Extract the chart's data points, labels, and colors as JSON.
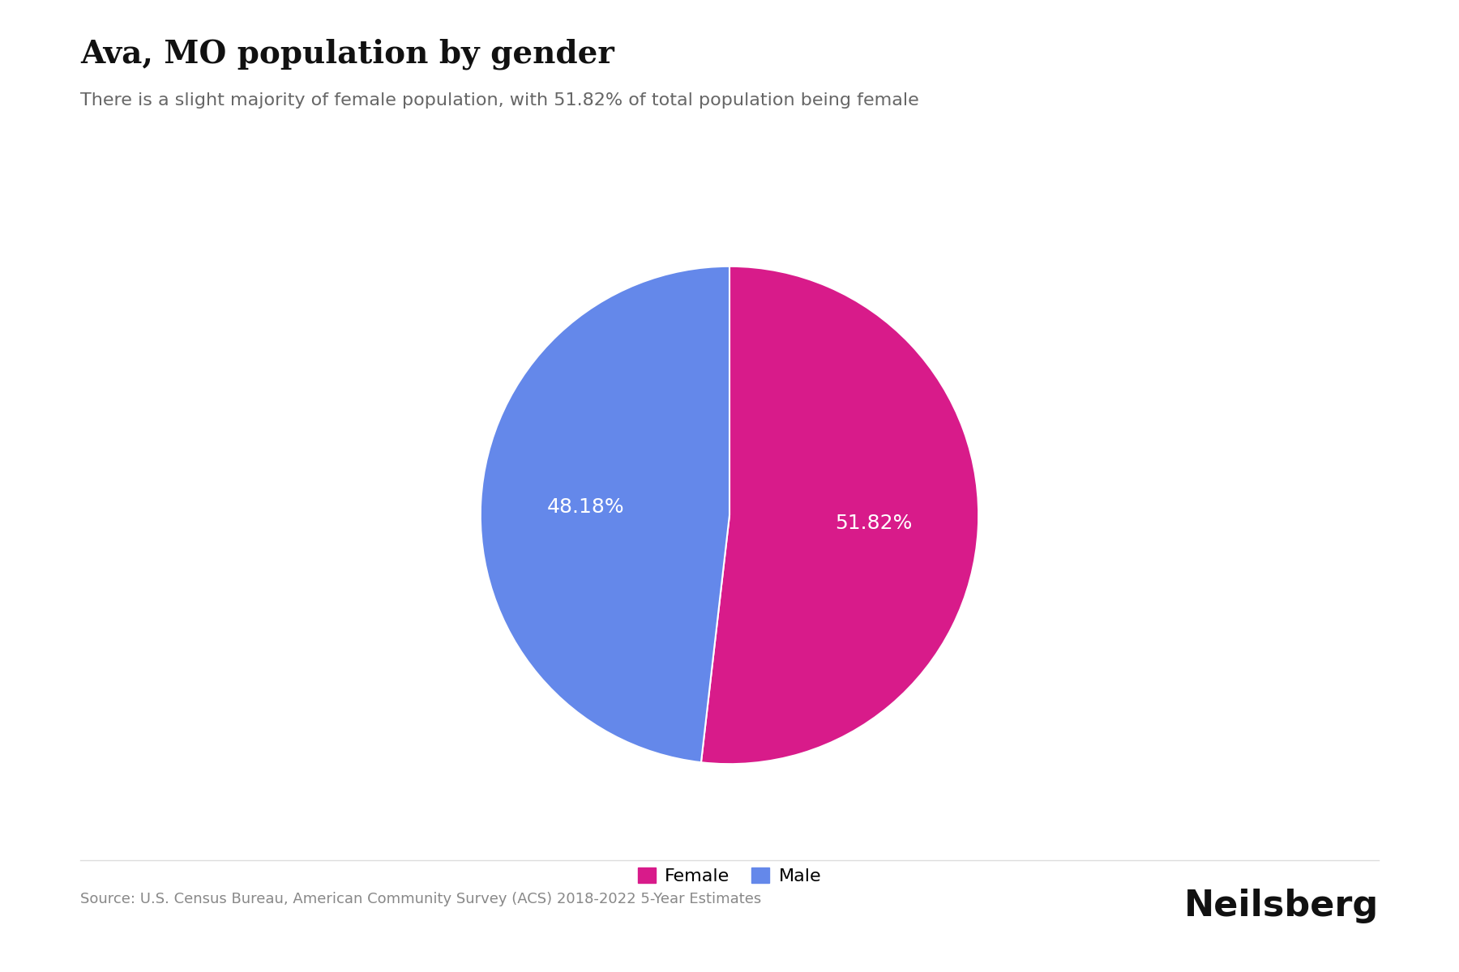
{
  "title": "Ava, MO population by gender",
  "subtitle": "There is a slight majority of female population, with 51.82% of total population being female",
  "labels": [
    "Female",
    "Male"
  ],
  "values": [
    51.82,
    48.18
  ],
  "colors": [
    "#D81B8A",
    "#6488EA"
  ],
  "label_texts": [
    "51.82%",
    "48.18%"
  ],
  "text_color": "#ffffff",
  "source_text": "Source: U.S. Census Bureau, American Community Survey (ACS) 2018-2022 5-Year Estimates",
  "brand_text": "Neilsberg",
  "background_color": "#ffffff",
  "title_fontsize": 28,
  "subtitle_fontsize": 16,
  "label_fontsize": 18,
  "source_fontsize": 13,
  "brand_fontsize": 32
}
